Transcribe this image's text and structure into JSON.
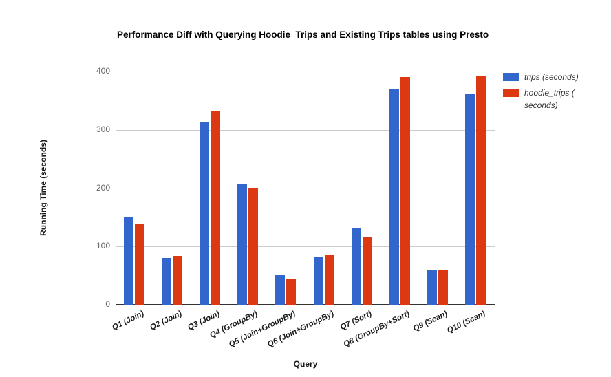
{
  "chart": {
    "title": "Performance Diff with Querying Hoodie_Trips and Existing Trips tables using Presto",
    "x_axis_title": "Query",
    "y_axis_title": "Running Time (seconds)"
  },
  "colors": {
    "series_blue": "#3366cc",
    "series_red": "#dc3912",
    "gridline": "#cccccc",
    "axis_line": "#333333",
    "background": "#ffffff"
  },
  "chart_data": {
    "type": "bar",
    "title": "Performance Diff with Querying Hoodie_Trips and Existing Trips tables using Presto",
    "xlabel": "Query",
    "ylabel": "Running Time (seconds)",
    "categories": [
      "Q1 (Join)",
      "Q2 (Join)",
      "Q3 (Join)",
      "Q4 (GroupBy)",
      "Q5 (Join+GroupBy)",
      "Q6 (Join+GroupBy)",
      "Q7 (Sort)",
      "Q8 (GroupBy+Sort)",
      "Q9 (Scan)",
      "Q10 (Scan)"
    ],
    "series": [
      {
        "name": "trips (seconds)",
        "color": "#3366cc",
        "values": [
          150,
          80,
          313,
          207,
          51,
          81,
          131,
          370,
          60,
          362
        ]
      },
      {
        "name": "hoodie_trips (seconds)",
        "color": "#dc3912",
        "values": [
          138,
          84,
          332,
          201,
          45,
          85,
          117,
          390,
          59,
          392
        ]
      }
    ],
    "ylim": [
      0,
      400
    ],
    "yticks": [
      0,
      100,
      200,
      300,
      400
    ],
    "grid": true,
    "legend_position": "right",
    "legend": [
      {
        "lines": [
          "trips (seconds)"
        ],
        "color": "#3366cc"
      },
      {
        "lines": [
          "hoodie_trips (",
          "seconds)"
        ],
        "color": "#dc3912"
      }
    ]
  }
}
